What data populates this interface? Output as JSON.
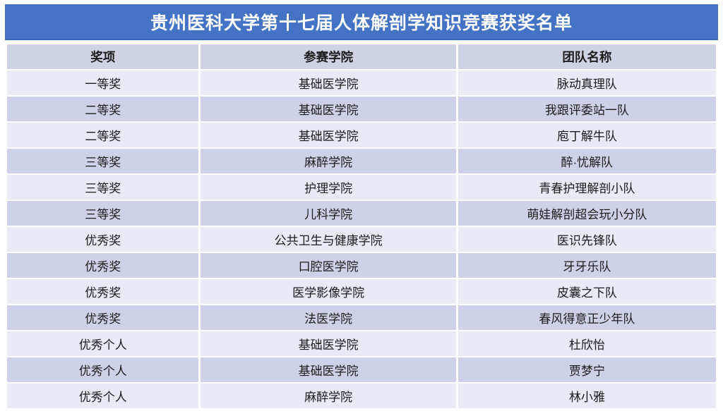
{
  "title": "贵州医科大学第十七届人体解剖学知识竞赛获奖名单",
  "colors": {
    "title_bar": "#4472C4",
    "header_row": "#CED3E4",
    "row_light": "#E8EAF5",
    "row_dark": "#CDD2E8",
    "title_text": "#FFFFFF",
    "body_text": "#1B1B1B"
  },
  "table": {
    "columns": [
      "奖项",
      "参赛学院",
      "团队名称"
    ],
    "rows": [
      {
        "award": "一等奖",
        "college": "基础医学院",
        "team": "脉动真理队"
      },
      {
        "award": "二等奖",
        "college": "基础医学院",
        "team": "我跟评委站一队"
      },
      {
        "award": "二等奖",
        "college": "基础医学院",
        "team": "庖丁解牛队"
      },
      {
        "award": "三等奖",
        "college": "麻醉学院",
        "team": "醉·忧解队"
      },
      {
        "award": "三等奖",
        "college": "护理学院",
        "team": "青春护理解剖小队"
      },
      {
        "award": "三等奖",
        "college": "儿科学院",
        "team": "萌娃解剖超会玩小分队"
      },
      {
        "award": "优秀奖",
        "college": "公共卫生与健康学院",
        "team": "医识先锋队"
      },
      {
        "award": "优秀奖",
        "college": "口腔医学院",
        "team": "牙牙乐队"
      },
      {
        "award": "优秀奖",
        "college": "医学影像学院",
        "team": "皮囊之下队"
      },
      {
        "award": "优秀奖",
        "college": "法医学院",
        "team": "春风得意正少年队"
      },
      {
        "award": "优秀个人",
        "college": "基础医学院",
        "team": "杜欣怡"
      },
      {
        "award": "优秀个人",
        "college": "基础医学院",
        "team": "贾梦宁"
      },
      {
        "award": "优秀个人",
        "college": "麻醉学院",
        "team": "林小雅"
      }
    ]
  }
}
